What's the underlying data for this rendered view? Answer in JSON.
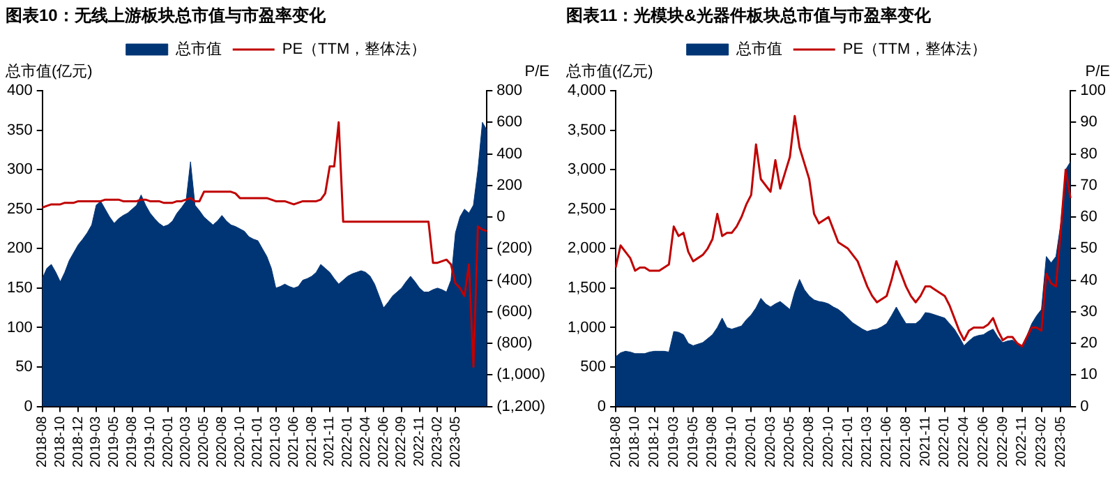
{
  "chart_data": [
    {
      "type": "line",
      "title": "图表10：无线上游板块总市值与市盈率变化",
      "ylabel": "总市值(亿元)",
      "y2label": "P/E",
      "legend": "top",
      "categories": [
        "2018-08",
        null,
        null,
        null,
        "2018-10",
        null,
        null,
        null,
        "2018-12",
        null,
        null,
        null,
        "2019-03",
        null,
        null,
        null,
        "2019-05",
        null,
        null,
        null,
        "2019-08",
        null,
        null,
        null,
        "2019-10",
        null,
        null,
        null,
        "2020-01",
        null,
        null,
        null,
        "2020-03",
        null,
        null,
        null,
        "2020-05",
        null,
        null,
        null,
        "2020-08",
        null,
        null,
        null,
        "2020-10",
        null,
        null,
        null,
        "2021-01",
        null,
        null,
        null,
        "2021-03",
        null,
        null,
        null,
        "2021-06",
        null,
        null,
        null,
        "2021-08",
        null,
        null,
        null,
        "2021-11",
        null,
        null,
        null,
        "2022-01",
        null,
        null,
        null,
        "2022-04",
        null,
        null,
        null,
        "2022-06",
        null,
        null,
        null,
        "2022-09",
        null,
        null,
        null,
        "2022-11",
        null,
        null,
        null,
        "2023-02",
        null,
        null,
        null,
        "2023-05",
        null,
        null,
        null,
        null,
        null,
        null,
        null
      ],
      "series": [
        {
          "name": "总市值",
          "color": "#003575",
          "type": "area",
          "values": [
            162,
            175,
            180,
            170,
            158,
            170,
            185,
            195,
            205,
            212,
            220,
            230,
            255,
            260,
            250,
            240,
            232,
            238,
            242,
            245,
            250,
            255,
            268,
            255,
            245,
            238,
            232,
            228,
            230,
            235,
            245,
            252,
            260,
            310,
            255,
            248,
            240,
            235,
            230,
            235,
            242,
            235,
            230,
            228,
            225,
            222,
            215,
            212,
            210,
            200,
            190,
            175,
            150,
            152,
            155,
            152,
            150,
            152,
            160,
            162,
            165,
            170,
            180,
            175,
            170,
            162,
            155,
            160,
            165,
            168,
            170,
            172,
            170,
            165,
            155,
            140,
            125,
            132,
            140,
            145,
            150,
            158,
            165,
            158,
            150,
            145,
            145,
            148,
            150,
            148,
            145,
            160,
            220,
            240,
            250,
            245,
            255,
            300,
            360,
            350
          ]
        },
        {
          "name": "PE（TTM，整体法）",
          "color": "#c00000",
          "type": "line",
          "axis": "y2",
          "values": [
            60,
            70,
            80,
            80,
            80,
            90,
            90,
            90,
            100,
            100,
            100,
            100,
            100,
            100,
            110,
            110,
            110,
            110,
            100,
            100,
            100,
            100,
            110,
            110,
            100,
            100,
            100,
            90,
            90,
            90,
            100,
            100,
            110,
            120,
            100,
            100,
            160,
            160,
            160,
            160,
            160,
            160,
            160,
            150,
            120,
            120,
            120,
            120,
            120,
            120,
            120,
            110,
            100,
            100,
            100,
            90,
            80,
            90,
            100,
            100,
            100,
            100,
            110,
            150,
            320,
            320,
            600,
            -30,
            -30,
            -30,
            -30,
            -30,
            -30,
            -30,
            -30,
            -30,
            -30,
            -30,
            -30,
            -30,
            -30,
            -30,
            -30,
            -30,
            -30,
            -30,
            -30,
            -290,
            -290,
            -280,
            -270,
            -300,
            -420,
            -450,
            -500,
            -300,
            -950,
            -60,
            -80,
            -90
          ]
        }
      ],
      "ylim": [
        0,
        400
      ],
      "yticks": [
        0,
        50,
        100,
        150,
        200,
        250,
        300,
        350,
        400
      ],
      "y2lim": [
        -1200,
        800
      ],
      "y2ticks": [
        {
          "value": -1200,
          "label": "(1,200)"
        },
        {
          "value": -1000,
          "label": "(1,000)"
        },
        {
          "value": -800,
          "label": "(800)"
        },
        {
          "value": -600,
          "label": "(600)"
        },
        {
          "value": -400,
          "label": "(400)"
        },
        {
          "value": -200,
          "label": "(200)"
        },
        0,
        200,
        400,
        600,
        800
      ]
    },
    {
      "type": "line",
      "title": "图表11：光模块&光器件板块总市值与市盈率变化",
      "ylabel": "总市值(亿元)",
      "y2label": "P/E",
      "legend": "top",
      "categories": [
        "2018-08",
        null,
        null,
        null,
        "2018-10",
        null,
        null,
        null,
        "2018-12",
        null,
        null,
        null,
        "2019-03",
        null,
        null,
        null,
        "2019-05",
        null,
        null,
        null,
        "2019-08",
        null,
        null,
        null,
        "2019-10",
        null,
        null,
        null,
        "2020-01",
        null,
        null,
        null,
        "2020-03",
        null,
        null,
        null,
        "2020-05",
        null,
        null,
        null,
        "2020-08",
        null,
        null,
        null,
        "2020-10",
        null,
        null,
        null,
        "2021-01",
        null,
        null,
        null,
        "2021-03",
        null,
        null,
        null,
        "2021-06",
        null,
        null,
        null,
        "2021-08",
        null,
        null,
        null,
        "2021-11",
        null,
        null,
        null,
        "2022-01",
        null,
        null,
        null,
        "2022-04",
        null,
        null,
        null,
        "2022-06",
        null,
        null,
        null,
        "2022-09",
        null,
        null,
        null,
        "2022-11",
        null,
        null,
        null,
        "2023-02",
        null,
        null,
        null,
        "2023-05",
        null,
        null
      ],
      "series": [
        {
          "name": "总市值",
          "color": "#003575",
          "type": "area",
          "values": [
            630,
            680,
            700,
            690,
            670,
            670,
            670,
            690,
            700,
            700,
            700,
            690,
            950,
            940,
            910,
            800,
            770,
            790,
            810,
            860,
            910,
            1000,
            1120,
            1000,
            980,
            1000,
            1020,
            1100,
            1160,
            1250,
            1370,
            1300,
            1260,
            1300,
            1330,
            1280,
            1230,
            1450,
            1610,
            1480,
            1400,
            1350,
            1330,
            1320,
            1300,
            1260,
            1230,
            1180,
            1120,
            1060,
            1020,
            980,
            950,
            970,
            980,
            1010,
            1050,
            1150,
            1260,
            1150,
            1050,
            1050,
            1050,
            1100,
            1190,
            1180,
            1160,
            1140,
            1120,
            1050,
            980,
            880,
            770,
            830,
            880,
            900,
            910,
            950,
            980,
            880,
            810,
            830,
            840,
            800,
            770,
            900,
            1050,
            1150,
            1230,
            1900,
            1820,
            1900,
            2320,
            3000,
            3100
          ]
        },
        {
          "name": "PE（TTM，整体法）",
          "color": "#c00000",
          "type": "line",
          "axis": "y2",
          "values": [
            44,
            51,
            49,
            47,
            43,
            44,
            44,
            43,
            43,
            43,
            44,
            45,
            57,
            54,
            55,
            49,
            46,
            47,
            48,
            50,
            53,
            61,
            54,
            55,
            55,
            57,
            60,
            64,
            67,
            83,
            72,
            70,
            68,
            78,
            69,
            74,
            79,
            92,
            82,
            77,
            72,
            61,
            58,
            59,
            60,
            56,
            52,
            51,
            50,
            48,
            46,
            42,
            38,
            35,
            33,
            34,
            35,
            40,
            46,
            42,
            38,
            35,
            33,
            35,
            38,
            38,
            37,
            36,
            35,
            32,
            28,
            24,
            21,
            24,
            25,
            25,
            25,
            26,
            28,
            24,
            21,
            22,
            22,
            20,
            19,
            22,
            25,
            25,
            24,
            42,
            39,
            38,
            56,
            75,
            66
          ]
        }
      ],
      "ylim": [
        0,
        4000
      ],
      "yticks": [
        0,
        500,
        {
          "value": 1000,
          "label": "1,000"
        },
        {
          "value": 1500,
          "label": "1,500"
        },
        {
          "value": 2000,
          "label": "2,000"
        },
        {
          "value": 2500,
          "label": "2,500"
        },
        {
          "value": 3000,
          "label": "3,000"
        },
        {
          "value": 3500,
          "label": "3,500"
        },
        {
          "value": 4000,
          "label": "4,000"
        }
      ],
      "y2lim": [
        0,
        100
      ],
      "y2ticks": [
        0,
        10,
        20,
        30,
        40,
        50,
        60,
        70,
        80,
        90,
        100
      ]
    }
  ]
}
